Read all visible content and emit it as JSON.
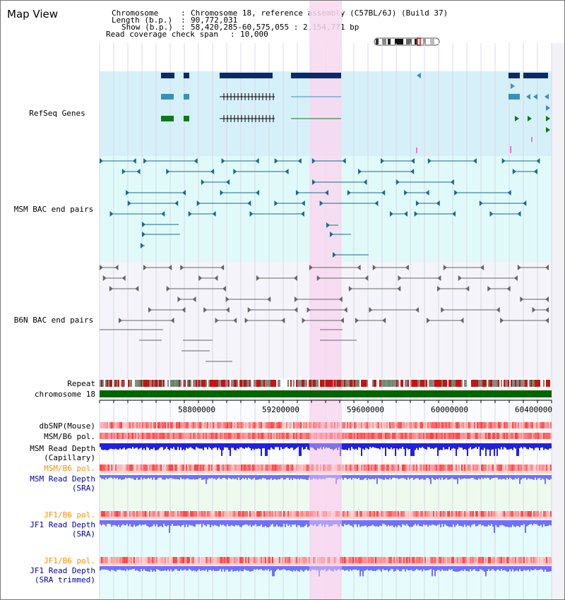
{
  "page": {
    "title": "Map View"
  },
  "header": {
    "chromosome_key": "Chromosome",
    "chromosome_value": "Chromosome 18, reference assembly (C57BL/6J) (Build 37)",
    "length_key": "Length (b.p.)",
    "length_value": "90,772,031",
    "show_key": "Show (b.p.)",
    "show_value": "58,420,285-60,575,055 : 2,154,771 bp",
    "coverage_key": "Read coverage check span",
    "coverage_value": "10,000"
  },
  "tracks": {
    "refseq": {
      "label": "RefSeq Genes",
      "color": "#0000aa"
    },
    "msm_bac": {
      "label": "MSM BAC end pairs",
      "color": "#004f8f"
    },
    "b6n_bac": {
      "label": "B6N BAC end pairs",
      "color": "#555555"
    },
    "repeat": {
      "label": "Repeat"
    },
    "chromosome": {
      "label": "chromosome 18"
    },
    "dbsnp": {
      "label": "dbSNP(Mouse)"
    },
    "msm_b6_pol_1": {
      "label": "MSM/B6 pol."
    },
    "msm_read_depth_cap": {
      "line1": "MSM Read Depth",
      "line2": "(Capillary)"
    },
    "msm_b6_pol_2": {
      "label": "MSM/B6 pol.",
      "color": "#ff8c00"
    },
    "msm_read_depth_sra": {
      "line1": "MSM Read Depth",
      "line2": "(SRA)",
      "color": "#0000aa"
    },
    "jf1_b6_pol_1": {
      "label": "JF1/B6 pol.",
      "color": "#ff8c00"
    },
    "jf1_read_depth_sra": {
      "line1": "JF1 Read Depth",
      "line2": "(SRA)",
      "color": "#0000aa"
    },
    "jf1_b6_pol_2": {
      "label": "JF1/B6 pol.",
      "color": "#ff8c00"
    },
    "jf1_read_depth_trim": {
      "line1": "JF1 Read Depth",
      "line2": "(SRA trimmed)",
      "color": "#0000aa"
    }
  },
  "axis": {
    "ticks": [
      "58800000",
      "59200000",
      "59600000",
      "60000000",
      "60400000"
    ]
  },
  "highlight": {
    "color": "#f8d8f0"
  },
  "colors": {
    "refseq_bg": "#d6f0fa",
    "msm_bac_bg": "#e0fafa",
    "b6n_bg": "#f4f4fa",
    "msm_sra_bg": "#eefaee",
    "jf1_bg": "#e6fcfc",
    "chromosome_bar": "#006400",
    "depth_blue": "#2020e0",
    "depth_light": "#7070ff"
  }
}
